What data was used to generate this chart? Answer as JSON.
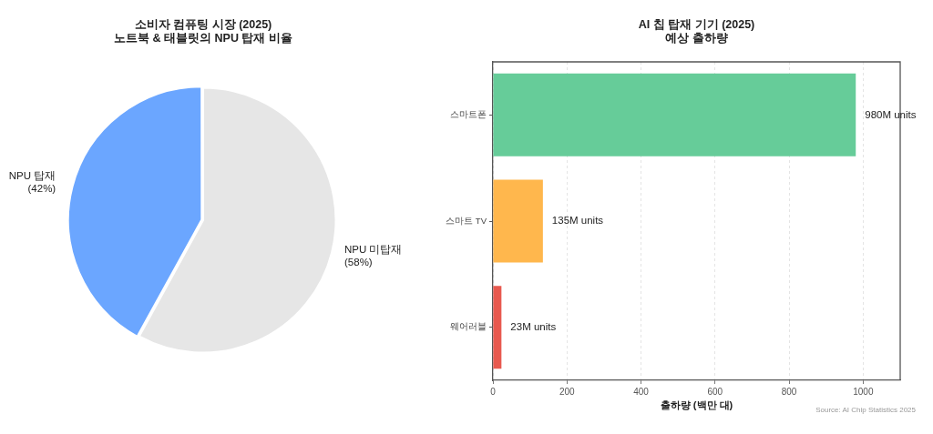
{
  "chart_data": [
    {
      "type": "pie",
      "title": "소비자 컴퓨팅 시장 (2025)\n노트북 & 태블릿의 NPU 탑재 비율",
      "categories": [
        "NPU 탑재",
        "NPU 미탑재"
      ],
      "values": [
        42,
        58
      ],
      "colors": [
        "#6ba6ff",
        "#e6e6e6"
      ],
      "value_labels": [
        "(42%)",
        "(58%)"
      ]
    },
    {
      "type": "bar",
      "orientation": "horizontal",
      "title": "AI 칩 탑재 기기 (2025)\n예상 출하량",
      "xlabel": "출하량 (백만 대)",
      "categories": [
        "스마트폰",
        "스마트 TV",
        "웨어러블"
      ],
      "values": [
        980,
        135,
        23
      ],
      "colors": [
        "#66cc99",
        "#ffb74d",
        "#e8594f"
      ],
      "value_labels": [
        "980M units",
        "135M units",
        "23M units"
      ],
      "xlim": [
        0,
        1100
      ],
      "xticks": [
        0,
        200,
        400,
        600,
        800,
        1000
      ],
      "grid": "x",
      "annotations": [
        "Source: AI Chip Statistics 2025"
      ]
    }
  ]
}
